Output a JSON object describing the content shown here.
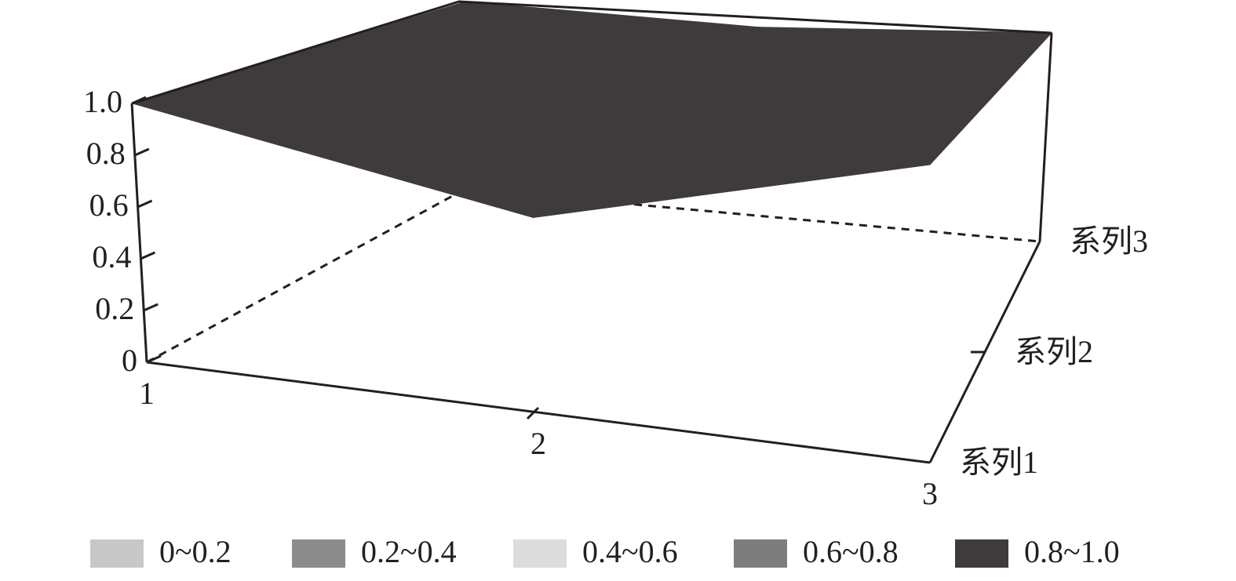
{
  "chart_data": {
    "type": "surface3d",
    "categories": [
      "1",
      "2",
      "3"
    ],
    "series": [
      {
        "name": "系列1",
        "values": [
          1.0,
          0.7,
          1.0
        ]
      },
      {
        "name": "系列2",
        "values": [
          1.0,
          0.9,
          1.0
        ]
      },
      {
        "name": "系列3",
        "values": [
          1.0,
          0.95,
          1.0
        ]
      }
    ],
    "zlim": [
      0,
      1.0
    ],
    "zticks": [
      0,
      0.2,
      0.4,
      0.6,
      0.8,
      {
        "value": 1.0,
        "label": "1.0"
      }
    ],
    "legend": [
      {
        "label": "0~0.2",
        "color": "#c8c8c8"
      },
      {
        "label": "0.2~0.4",
        "color": "#8c8c8c"
      },
      {
        "label": "0.4~0.6",
        "color": "#dcdcdc"
      },
      {
        "label": "0.6~0.8",
        "color": "#7d7d7d"
      },
      {
        "label": "0.8~1.0",
        "color": "#3f3b3c"
      }
    ],
    "legend_position": "bottom"
  }
}
